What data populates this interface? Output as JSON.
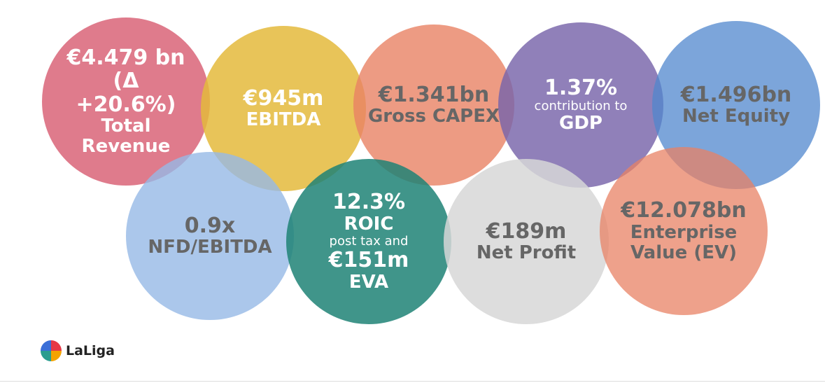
{
  "bubbles": [
    {
      "value": "€4.479 bn (Δ +20.6%)",
      "label": "Total Revenue"
    },
    {
      "value": "€945m",
      "label": "EBITDA"
    },
    {
      "value": "€1.341bn",
      "label": "Gross CAPEX"
    },
    {
      "value": "1.37%",
      "note": "contribution to",
      "label": "GDP"
    },
    {
      "value": "€1.496bn",
      "label": "Net Equity"
    },
    {
      "value": "0.9x",
      "label": "NFD/EBITDA"
    },
    {
      "value": "12.3%",
      "label": "ROIC",
      "note": "post tax and",
      "value_2": "€151m",
      "label_2": "EVA"
    },
    {
      "value": "€189m",
      "label": "Net Profit"
    },
    {
      "value": "€12.078bn",
      "label": "Enterprise Value (EV)"
    }
  ],
  "logo": {
    "text": "LaLiga"
  }
}
